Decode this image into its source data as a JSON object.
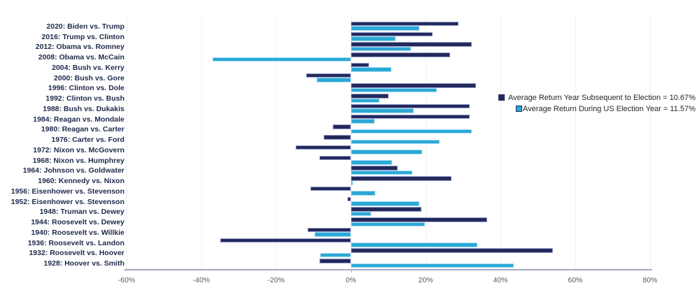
{
  "chart_data": {
    "type": "bar",
    "orientation": "horizontal",
    "title": "",
    "categories": [
      "2020: Biden vs. Trump",
      "2016: Trump vs. Clinton",
      "2012: Obama vs. Romney",
      "2008: Obama vs. McCain",
      "2004: Bush vs. Kerry",
      "2000: Bush vs. Gore",
      "1996: Clinton vs. Dole",
      "1992: Clinton vs. Bush",
      "1988: Bush vs. Dukakis",
      "1984: Reagan vs. Mondale",
      "1980: Reagan vs. Carter",
      "1976: Carter vs. Ford",
      "1972: Nixon vs. McGovern",
      "1968: Nixon vs. Humphrey",
      "1964: Johnson vs. Goldwater",
      "1960: Kennedy vs. Nixon",
      "1956: Eisenhower vs. Stevenson",
      "1952: Eisenhower vs. Stevenson",
      "1948: Truman vs. Dewey",
      "1944: Roosevelt vs. Dewey",
      "1940: Roosevelt vs. Willkie",
      "1936: Roosevelt vs. Landon",
      "1932: Roosevelt vs. Hoover",
      "1928: Hoover vs. Smith"
    ],
    "series": [
      {
        "name": "Average Return Year Subsequent to Election = 10.67%",
        "average": "10.67%",
        "color": "#222A5C",
        "border_color": "#9CA0CE",
        "values": [
          28.7,
          21.8,
          32.4,
          26.5,
          4.9,
          -11.9,
          33.4,
          10.1,
          31.7,
          31.7,
          -4.9,
          -7.2,
          -14.7,
          -8.5,
          12.5,
          26.9,
          -10.8,
          -1.0,
          18.8,
          36.4,
          -11.6,
          -35.0,
          54.0,
          -8.4
        ]
      },
      {
        "name": "Average Return During US Election Year = 11.57%",
        "average": "11.57%",
        "color": "#2BA9D6",
        "border_color": "#A5DBF2",
        "values": [
          18.4,
          12.0,
          16.0,
          -37.0,
          10.9,
          -9.1,
          23.0,
          7.6,
          16.8,
          6.3,
          32.4,
          23.8,
          19.0,
          11.1,
          16.5,
          0.5,
          6.6,
          18.4,
          5.5,
          19.8,
          -9.8,
          33.9,
          -8.2,
          43.6
        ]
      }
    ],
    "xlim": [
      -60,
      80
    ],
    "xticks": [
      {
        "value": -60,
        "label": "-60%"
      },
      {
        "value": -40,
        "label": "-40%"
      },
      {
        "value": -20,
        "label": "-20%"
      },
      {
        "value": 0,
        "label": "0%"
      },
      {
        "value": 20,
        "label": "20%"
      },
      {
        "value": 40,
        "label": "40%"
      },
      {
        "value": 60,
        "label": "60%"
      },
      {
        "value": 80,
        "label": "80%"
      }
    ],
    "grid": true,
    "legend_position": "right",
    "colors": {
      "gridline": "#F0F0F3",
      "axis_line": "#A6A6C4",
      "category_label": "#1F2A4C",
      "tick_label": "#595959",
      "legend_text": "#262626",
      "legend_marker_border_election": "#1F2A4C"
    }
  }
}
